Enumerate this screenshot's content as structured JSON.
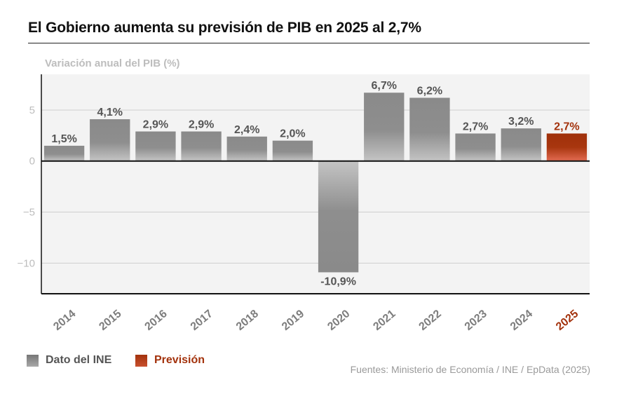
{
  "title": "El Gobierno aumenta su previsión de PIB en 2025 al 2,7%",
  "source": "Fuentes: Ministerio de Economía / INE / EpData (2025)",
  "colors": {
    "ine": "#8c8c8c",
    "forecast": "#a3320c",
    "plot_bg": "#f3f3f3"
  },
  "legend": [
    {
      "label": "Dato del INE",
      "color": "#7d7d7d",
      "text_color": "#555555"
    },
    {
      "label": "Previsión",
      "color": "#a3320c",
      "text_color": "#a3320c"
    }
  ],
  "chart_data": {
    "type": "bar",
    "ylabel": "Variación anual del PIB (%)",
    "xlabel": "",
    "ylim": [
      -13,
      8.5
    ],
    "yticks": [
      -10,
      -5,
      0,
      5
    ],
    "ytick_labels": [
      "−10",
      "−5",
      "0",
      "5"
    ],
    "grid": true,
    "legend_position": "bottom-left",
    "categories": [
      "2014",
      "2015",
      "2016",
      "2017",
      "2018",
      "2019",
      "2020",
      "2021",
      "2022",
      "2023",
      "2024",
      "2025"
    ],
    "values": [
      1.5,
      4.1,
      2.9,
      2.9,
      2.4,
      2.0,
      -10.9,
      6.7,
      6.2,
      2.7,
      3.2,
      2.7
    ],
    "labels": [
      "1,5%",
      "4,1%",
      "2,9%",
      "2,9%",
      "2,4%",
      "2,0%",
      "-10,9%",
      "6,7%",
      "6,2%",
      "2,7%",
      "3,2%",
      "2,7%"
    ],
    "series_kind": [
      "Dato del INE",
      "Dato del INE",
      "Dato del INE",
      "Dato del INE",
      "Dato del INE",
      "Dato del INE",
      "Dato del INE",
      "Dato del INE",
      "Dato del INE",
      "Dato del INE",
      "Dato del INE",
      "Previsión"
    ]
  }
}
